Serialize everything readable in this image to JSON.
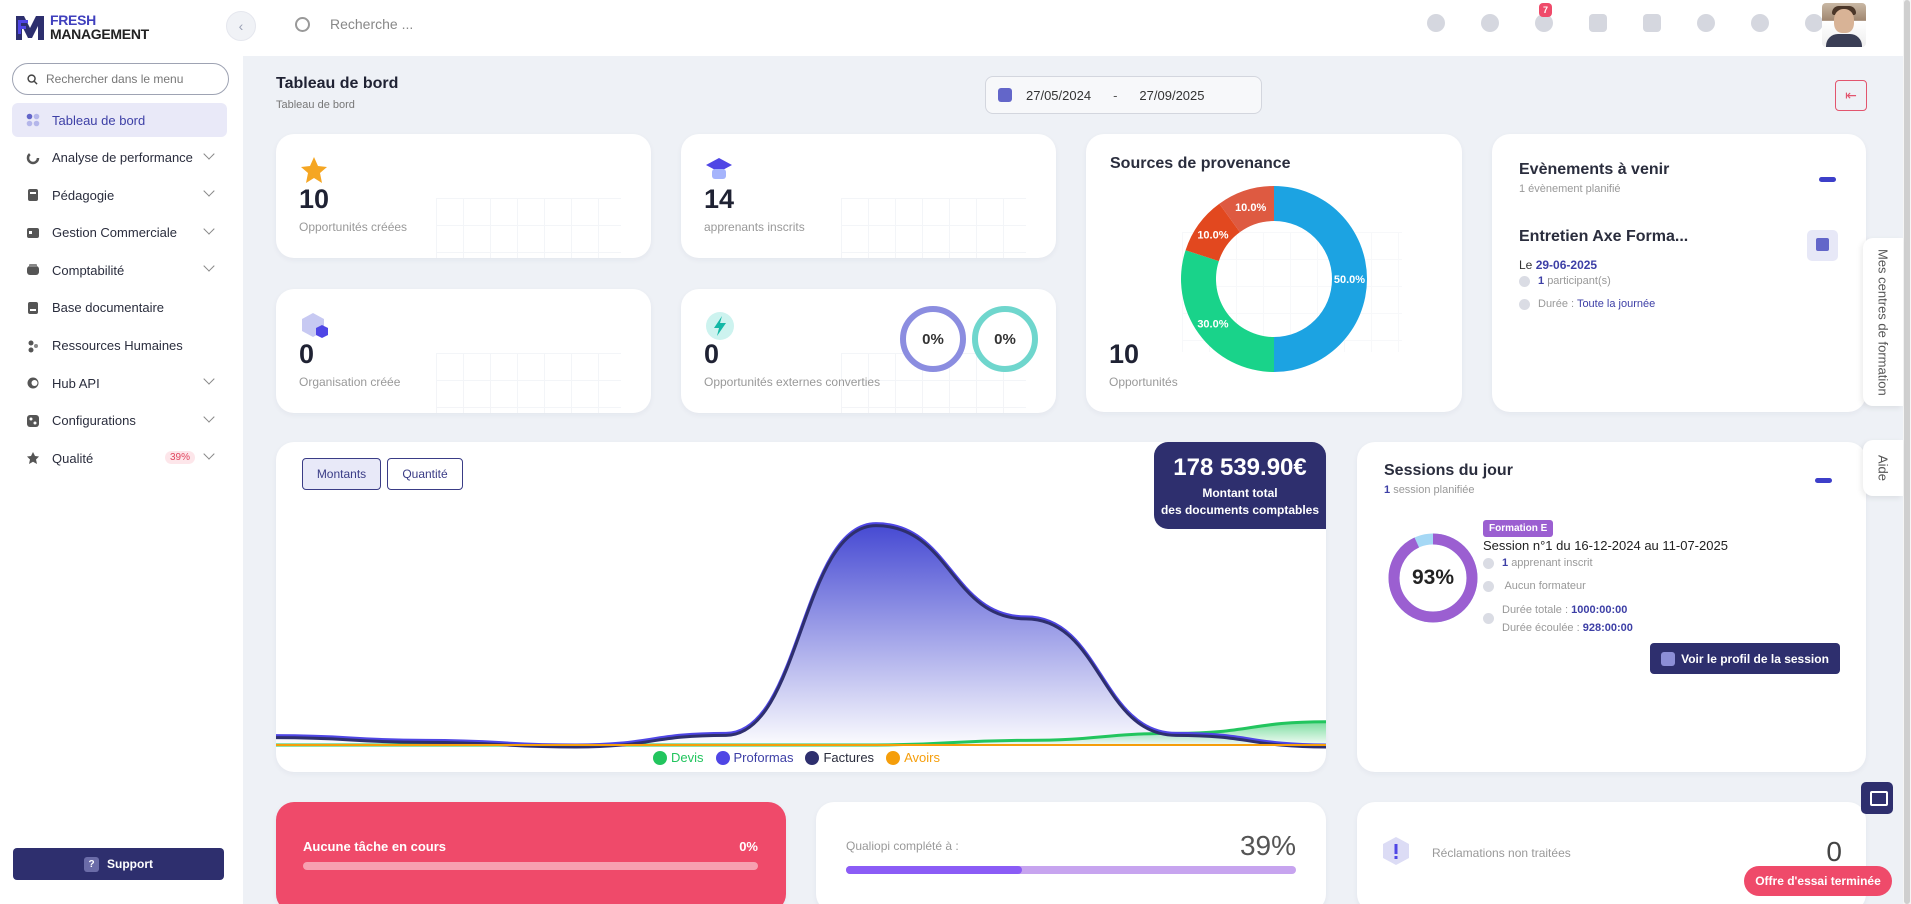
{
  "brand": {
    "line1": "FRESH",
    "line2": "MANAGEMENT"
  },
  "sidebar": {
    "search_placeholder": "Rechercher dans le menu",
    "items": [
      {
        "label": "Tableau de bord"
      },
      {
        "label": "Analyse de performance"
      },
      {
        "label": "Pédagogie"
      },
      {
        "label": "Gestion Commerciale"
      },
      {
        "label": "Comptabilité"
      },
      {
        "label": "Base documentaire"
      },
      {
        "label": "Ressources Humaines"
      },
      {
        "label": "Hub API"
      },
      {
        "label": "Configurations"
      },
      {
        "label": "Qualité",
        "badge": "39%"
      }
    ],
    "support_label": "Support"
  },
  "topbar": {
    "search_placeholder": "Recherche ...",
    "notification_count": "7"
  },
  "page": {
    "title": "Tableau de bord",
    "breadcrumb": "Tableau de bord",
    "date_start": "27/05/2024",
    "date_sep": "-",
    "date_end": "27/09/2025"
  },
  "stats": {
    "opportunites": {
      "value": "10",
      "label": "Opportunités créées"
    },
    "apprenants": {
      "value": "14",
      "label": "apprenants inscrits"
    },
    "organisation": {
      "value": "0",
      "label": "Organisation créée"
    },
    "externes": {
      "value": "0",
      "label": "Opportunités externes converties",
      "ring1": "0%",
      "ring2": "0%"
    }
  },
  "sources": {
    "title": "Sources de provenance",
    "total": "10",
    "total_label": "Opportunités",
    "slices": [
      {
        "pct": 50.0,
        "label": "50.0%",
        "color": "#1ca3e2"
      },
      {
        "pct": 30.0,
        "label": "30.0%",
        "color": "#19d38a"
      },
      {
        "pct": 10.0,
        "label": "10.0%",
        "color": "#e2481f"
      },
      {
        "pct": 10.0,
        "label": "10.0%",
        "color": "#de5a41"
      }
    ]
  },
  "events": {
    "title": "Evènements à venir",
    "subtitle": "1 évènement planifié",
    "event_title": "Entretien Axe Forma...",
    "date_prefix": "Le",
    "date": "29-06-2025",
    "participants_count": "1",
    "participants_label": "participant(s)",
    "duration_label": "Durée :",
    "duration_value": "Toute la journée"
  },
  "chart": {
    "tab_amounts": "Montants",
    "tab_quantity": "Quantité",
    "total_amount": "178 539.90€",
    "total_desc1": "Montant total",
    "total_desc2": "des documents comptables",
    "legend": [
      {
        "name": "Devis",
        "color": "#22c55e"
      },
      {
        "name": "Proformas",
        "color": "#4f46e5"
      },
      {
        "name": "Factures",
        "color": "#2e2f6e"
      },
      {
        "name": "Avoirs",
        "color": "#f59e0b"
      }
    ]
  },
  "chart_data": {
    "type": "area",
    "title": "",
    "xlabel": "",
    "ylabel": "",
    "series": [
      {
        "name": "Devis",
        "values": [
          0,
          0,
          0,
          0,
          0,
          0.02,
          0.05,
          0.1
        ]
      },
      {
        "name": "Proformas",
        "values": [
          0.04,
          0.02,
          0,
          0.05,
          0.95,
          0.55,
          0.05,
          0
        ]
      },
      {
        "name": "Factures",
        "values": [
          0.04,
          0.02,
          0,
          0.05,
          0.95,
          0.55,
          0.05,
          0
        ]
      },
      {
        "name": "Avoirs",
        "values": [
          0,
          0,
          0,
          0,
          0,
          0,
          0,
          0
        ]
      }
    ],
    "legend_position": "bottom"
  },
  "sessions": {
    "title": "Sessions du jour",
    "subtitle_count": "1",
    "subtitle_label": "session planifiée",
    "progress": "93%",
    "progress_value": 93,
    "tag": "Formation E",
    "session_line": "Session n°1 du 16-12-2024 au 11-07-2025",
    "learners_count": "1",
    "learners_label": "apprenant inscrit",
    "trainer": "Aucun formateur",
    "total_label": "Durée totale :",
    "total_value": "1000:00:00",
    "elapsed_label": "Durée écoulée :",
    "elapsed_value": "928:00:00",
    "profile_button": "Voir le profil de la session"
  },
  "bottom": {
    "tasks_label": "Aucune tâche en cours",
    "tasks_pct": "0%",
    "qualiopi_label": "Qualiopi complété à :",
    "qualiopi_pct": "39%",
    "qualiopi_value": 39,
    "claims_label": "Réclamations non traitées",
    "claims_count": "0"
  },
  "side_tabs": {
    "centres": "Mes centres de formation",
    "aide": "Aide"
  },
  "trial_label": "Offre d'essai terminée",
  "colors": {
    "primary": "#2e2f6e",
    "accent": "#3d3fc9",
    "danger": "#ef4a6a"
  }
}
